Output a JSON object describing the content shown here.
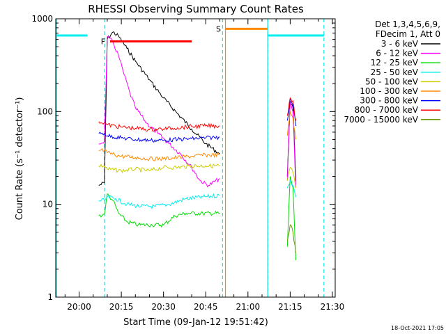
{
  "chart_data": {
    "type": "line",
    "title": "RHESSI Observing Summary Count Rates",
    "xlabel": "Start Time (09-Jan-12 19:51:42)",
    "ylabel": "Count Rate (s⁻¹ detector⁻¹)",
    "y_scale": "log",
    "ylim": [
      1,
      1000
    ],
    "xlim": [
      "19:51:42",
      "21:31:00"
    ],
    "x_tick_labels": [
      "20:00",
      "20:15",
      "20:30",
      "20:45",
      "21:00",
      "21:15",
      "21:30"
    ],
    "y_tick_labels": [
      "1",
      "10",
      "100",
      "1000"
    ],
    "legend_header": [
      "Det 1,3,4,5,6,9,",
      "FDecim 1, Att 0"
    ],
    "legend_position": "top-right",
    "footer_date": "18-Oct-2021 17:05",
    "series": [
      {
        "name": "3 - 6 keV",
        "color": "#000000",
        "points": [
          [
            "20:07",
            "16"
          ],
          [
            "20:09",
            "17"
          ],
          [
            "20:10",
            "600"
          ],
          [
            "20:12",
            "720"
          ],
          [
            "20:14",
            "650"
          ],
          [
            "20:17",
            "480"
          ],
          [
            "20:20",
            "350"
          ],
          [
            "20:25",
            "220"
          ],
          [
            "20:30",
            "140"
          ],
          [
            "20:35",
            "95"
          ],
          [
            "20:40",
            "65"
          ],
          [
            "20:45",
            "45"
          ],
          [
            "20:50",
            "35"
          ],
          [
            "21:14",
            "20"
          ],
          [
            "21:15",
            "130"
          ],
          [
            "21:16",
            "110"
          ],
          [
            "21:17",
            "18"
          ]
        ]
      },
      {
        "name": "6 - 12 keV",
        "color": "#ff00ff",
        "points": [
          [
            "20:07",
            "45"
          ],
          [
            "20:09",
            "48"
          ],
          [
            "20:10",
            "640"
          ],
          [
            "20:12",
            "560"
          ],
          [
            "20:14",
            "400"
          ],
          [
            "20:16",
            "250"
          ],
          [
            "20:18",
            "160"
          ],
          [
            "20:20",
            "110"
          ],
          [
            "20:24",
            "75"
          ],
          [
            "20:28",
            "58"
          ],
          [
            "20:32",
            "45"
          ],
          [
            "20:36",
            "35"
          ],
          [
            "20:40",
            "25"
          ],
          [
            "20:43",
            "18"
          ],
          [
            "20:46",
            "16"
          ],
          [
            "20:50",
            "19"
          ],
          [
            "21:14",
            "18"
          ],
          [
            "21:15",
            "125"
          ],
          [
            "21:16",
            "100"
          ],
          [
            "21:17",
            "15"
          ]
        ]
      },
      {
        "name": "12 - 25 keV",
        "color": "#00dd00",
        "points": [
          [
            "20:07",
            "7.5"
          ],
          [
            "20:09",
            "7.8"
          ],
          [
            "20:10",
            "13"
          ],
          [
            "20:12",
            "11"
          ],
          [
            "20:14",
            "8"
          ],
          [
            "20:17",
            "6.5"
          ],
          [
            "20:21",
            "6"
          ],
          [
            "20:26",
            "6"
          ],
          [
            "20:30",
            "6"
          ],
          [
            "20:34",
            "7.5"
          ],
          [
            "20:38",
            "8"
          ],
          [
            "20:44",
            "8"
          ],
          [
            "20:50",
            "8"
          ],
          [
            "21:14",
            "3.5"
          ],
          [
            "21:15",
            "20"
          ],
          [
            "21:16",
            "15"
          ],
          [
            "21:17",
            "2.5"
          ]
        ]
      },
      {
        "name": "25 - 50 keV",
        "color": "#00eeee",
        "points": [
          [
            "20:07",
            "11"
          ],
          [
            "20:09",
            "11"
          ],
          [
            "20:10",
            "12"
          ],
          [
            "20:13",
            "11.5"
          ],
          [
            "20:17",
            "10"
          ],
          [
            "20:22",
            "9.5"
          ],
          [
            "20:27",
            "9.5"
          ],
          [
            "20:32",
            "10"
          ],
          [
            "20:38",
            "11.5"
          ],
          [
            "20:44",
            "12"
          ],
          [
            "20:50",
            "12.5"
          ],
          [
            "21:14",
            "15"
          ],
          [
            "21:15",
            "18"
          ],
          [
            "21:16",
            "16"
          ],
          [
            "21:17",
            "12"
          ]
        ]
      },
      {
        "name": "50 - 100 keV",
        "color": "#cccc00",
        "points": [
          [
            "20:07",
            "26"
          ],
          [
            "20:09",
            "26"
          ],
          [
            "20:10",
            "24"
          ],
          [
            "20:15",
            "23"
          ],
          [
            "20:20",
            "24"
          ],
          [
            "20:25",
            "23"
          ],
          [
            "20:30",
            "25"
          ],
          [
            "20:35",
            "25"
          ],
          [
            "20:40",
            "26"
          ],
          [
            "20:45",
            "26"
          ],
          [
            "20:50",
            "26"
          ],
          [
            "21:14",
            "18"
          ],
          [
            "21:15",
            "25"
          ],
          [
            "21:16",
            "22"
          ],
          [
            "21:17",
            "15"
          ]
        ]
      },
      {
        "name": "100 - 300 keV",
        "color": "#ff8800",
        "points": [
          [
            "20:07",
            "38"
          ],
          [
            "20:09",
            "38"
          ],
          [
            "20:10",
            "36"
          ],
          [
            "20:15",
            "33"
          ],
          [
            "20:20",
            "32"
          ],
          [
            "20:25",
            "31"
          ],
          [
            "20:30",
            "31"
          ],
          [
            "20:35",
            "32"
          ],
          [
            "20:40",
            "33"
          ],
          [
            "20:45",
            "34"
          ],
          [
            "20:50",
            "34"
          ],
          [
            "21:14",
            "55"
          ],
          [
            "21:15",
            "100"
          ],
          [
            "21:16",
            "85"
          ],
          [
            "21:17",
            "50"
          ]
        ]
      },
      {
        "name": "300 - 800 keV",
        "color": "#0000ff",
        "points": [
          [
            "20:07",
            "58"
          ],
          [
            "20:09",
            "58"
          ],
          [
            "20:10",
            "55"
          ],
          [
            "20:15",
            "52"
          ],
          [
            "20:20",
            "50"
          ],
          [
            "20:25",
            "49"
          ],
          [
            "20:30",
            "49"
          ],
          [
            "20:35",
            "50"
          ],
          [
            "20:40",
            "51"
          ],
          [
            "20:45",
            "52"
          ],
          [
            "20:50",
            "53"
          ],
          [
            "21:14",
            "80"
          ],
          [
            "21:15",
            "135"
          ],
          [
            "21:16",
            "120"
          ],
          [
            "21:17",
            "70"
          ]
        ]
      },
      {
        "name": "800 - 7000 keV",
        "color": "#ff0000",
        "points": [
          [
            "20:07",
            "78"
          ],
          [
            "20:09",
            "76"
          ],
          [
            "20:10",
            "72"
          ],
          [
            "20:15",
            "68"
          ],
          [
            "20:20",
            "66"
          ],
          [
            "20:25",
            "64"
          ],
          [
            "20:30",
            "65"
          ],
          [
            "20:35",
            "67"
          ],
          [
            "20:40",
            "69"
          ],
          [
            "20:45",
            "70"
          ],
          [
            "20:50",
            "70"
          ],
          [
            "21:14",
            "90"
          ],
          [
            "21:15",
            "140"
          ],
          [
            "21:16",
            "130"
          ],
          [
            "21:17",
            "80"
          ]
        ]
      },
      {
        "name": "7000 - 15000 keV",
        "color": "#669900",
        "points": [
          [
            "21:14",
            "4"
          ],
          [
            "21:15",
            "6"
          ],
          [
            "21:16",
            "5"
          ],
          [
            "21:17",
            "3"
          ]
        ]
      }
    ],
    "annotations": [
      {
        "label": "F",
        "color": "#ff0000",
        "x_start": "20:11",
        "x_end": "20:40",
        "y": "570"
      },
      {
        "label": "S",
        "color": "#ff8800",
        "x_start": "20:52",
        "x_end": "21:07",
        "y": "780"
      }
    ],
    "status_bars": [
      {
        "color": "#00eeee",
        "x_start": "19:51:42",
        "x_end": "20:03",
        "y": "660"
      },
      {
        "color": "#00eeee",
        "x_start": "21:07",
        "x_end": "21:27",
        "y": "660"
      }
    ],
    "vertical_markers": [
      {
        "color": "#00eeee",
        "style": "solid",
        "x": "19:52"
      },
      {
        "color": "#00eeee",
        "style": "dashed",
        "x": "20:09"
      },
      {
        "color": "#00eeee",
        "style": "dashed",
        "x": "20:51"
      },
      {
        "color": "#00eeee",
        "style": "dashed",
        "x": "21:07"
      },
      {
        "color": "#00eeee",
        "style": "dashed",
        "x": "21:27"
      },
      {
        "color": "#ff8800",
        "style": "solid",
        "x": "20:52"
      },
      {
        "color": "#00eeee",
        "style": "solid",
        "x": "21:07"
      }
    ]
  }
}
